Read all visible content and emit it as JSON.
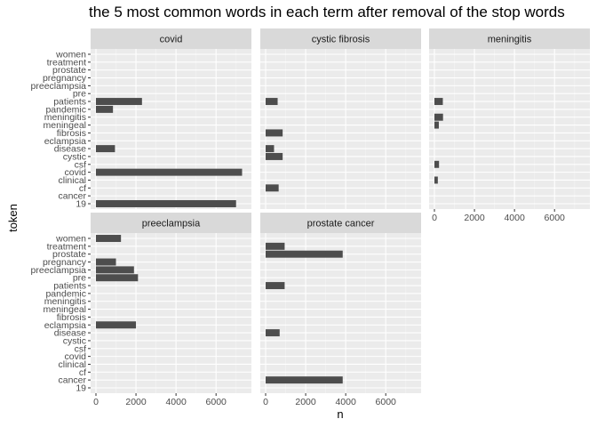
{
  "chart_data": {
    "type": "bar",
    "orientation": "horizontal",
    "title": "the 5 most common words in each term after removal of the stop words",
    "xlabel": "n",
    "ylabel": "token",
    "xlim": [
      0,
      7500
    ],
    "x_ticks": [
      0,
      2000,
      4000,
      6000
    ],
    "x_tick_labels": [
      "0",
      "2000",
      "4000",
      "6000"
    ],
    "categories": [
      "women",
      "treatment",
      "prostate",
      "pregnancy",
      "preeclampsia",
      "pre",
      "patients",
      "pandemic",
      "meningitis",
      "meningeal",
      "fibrosis",
      "eclampsia",
      "disease",
      "cystic",
      "csf",
      "covid",
      "clinical",
      "cf",
      "cancer",
      "19"
    ],
    "grid": true,
    "facets": [
      {
        "name": "covid",
        "values": {
          "patients": 2300,
          "pandemic": 850,
          "disease": 950,
          "covid": 7300,
          "19": 7000
        }
      },
      {
        "name": "cystic fibrosis",
        "values": {
          "patients": 600,
          "fibrosis": 850,
          "disease": 420,
          "cystic": 850,
          "cf": 650
        }
      },
      {
        "name": "meningitis",
        "values": {
          "patients": 420,
          "meningitis": 430,
          "meningeal": 220,
          "csf": 230,
          "clinical": 170
        }
      },
      {
        "name": "preeclampsia",
        "values": {
          "women": 1250,
          "pregnancy": 1000,
          "preeclampsia": 1900,
          "pre": 2100,
          "eclampsia": 2000
        }
      },
      {
        "name": "prostate cancer",
        "values": {
          "treatment": 950,
          "prostate": 3850,
          "patients": 950,
          "disease": 700,
          "cancer": 3850
        }
      }
    ]
  }
}
